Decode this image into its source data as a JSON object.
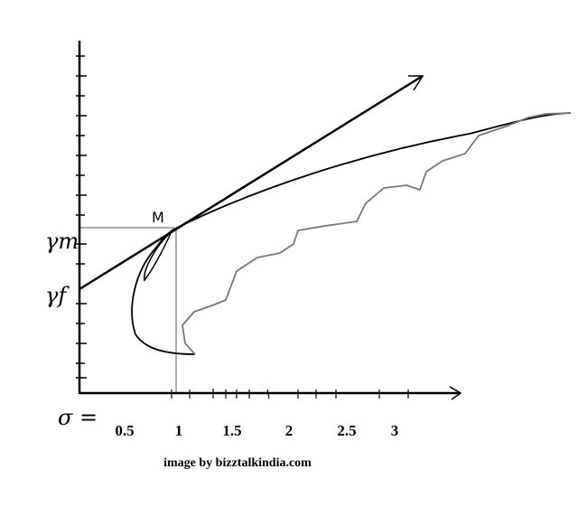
{
  "labels": {
    "point": "M",
    "sigma": "σ =",
    "return_market": "γm",
    "return_free": "γf"
  },
  "x_axis": {
    "tick_labels": [
      "0.5",
      "1",
      "1.5",
      "2",
      "2.5",
      "3"
    ]
  },
  "caption": "image by bizztalkindia.com"
}
